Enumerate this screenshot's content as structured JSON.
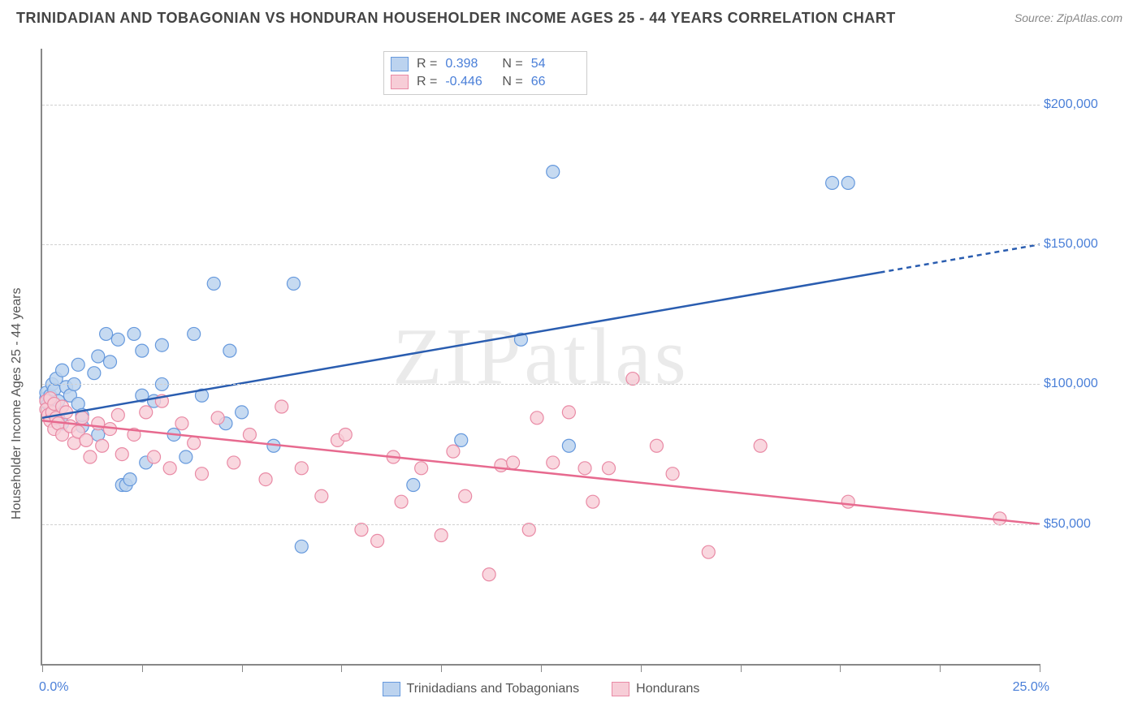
{
  "title": "TRINIDADIAN AND TOBAGONIAN VS HONDURAN HOUSEHOLDER INCOME AGES 25 - 44 YEARS CORRELATION CHART",
  "source": "Source: ZipAtlas.com",
  "watermark": "ZIPatlas",
  "chart": {
    "type": "scatter",
    "y_axis_label": "Householder Income Ages 25 - 44 years",
    "xlim": [
      0,
      25
    ],
    "ylim": [
      0,
      220000
    ],
    "x_tick_min_label": "0.0%",
    "x_tick_max_label": "25.0%",
    "x_tick_positions": [
      0,
      2.5,
      5,
      7.5,
      10,
      12.5,
      15,
      17.5,
      20,
      22.5,
      25
    ],
    "y_ticks": [
      {
        "v": 50000,
        "label": "$50,000"
      },
      {
        "v": 100000,
        "label": "$100,000"
      },
      {
        "v": 150000,
        "label": "$150,000"
      },
      {
        "v": 200000,
        "label": "$200,000"
      }
    ],
    "background_color": "#ffffff",
    "grid_color": "#d0d0d0",
    "axis_color": "#888888",
    "tick_label_color": "#4a7fd8",
    "title_color": "#444444",
    "title_fontsize": 18,
    "label_fontsize": 16,
    "marker_radius": 8
  },
  "stats_legend": {
    "rows": [
      {
        "swatch_fill": "#bcd3ef",
        "swatch_border": "#6699dd",
        "r_label": "R =",
        "r_value": "0.398",
        "n_label": "N =",
        "n_value": "54"
      },
      {
        "swatch_fill": "#f7cdd7",
        "swatch_border": "#e98aa5",
        "r_label": "R =",
        "r_value": "-0.446",
        "n_label": "N =",
        "n_value": "66"
      }
    ]
  },
  "bottom_legend": {
    "items": [
      {
        "swatch_fill": "#bcd3ef",
        "swatch_border": "#6699dd",
        "label": "Trinidadians and Tobagonians"
      },
      {
        "swatch_fill": "#f7cdd7",
        "swatch_border": "#e98aa5",
        "label": "Hondurans"
      }
    ]
  },
  "series": [
    {
      "name": "Trinidadians and Tobagonians",
      "marker_fill": "#bcd3ef",
      "marker_stroke": "#6699dd",
      "marker_opacity": 0.85,
      "trend": {
        "color": "#2a5db0",
        "width": 2.5,
        "x1": 0,
        "y1": 88000,
        "x2": 21,
        "y2": 140000,
        "dash_x2": 25,
        "dash_y2": 150000
      },
      "points": [
        [
          0.1,
          95000
        ],
        [
          0.1,
          97000
        ],
        [
          0.15,
          93000
        ],
        [
          0.2,
          96000
        ],
        [
          0.2,
          92000
        ],
        [
          0.25,
          100000
        ],
        [
          0.3,
          98000
        ],
        [
          0.3,
          90000
        ],
        [
          0.35,
          102000
        ],
        [
          0.4,
          94000
        ],
        [
          0.4,
          88000
        ],
        [
          0.5,
          105000
        ],
        [
          0.5,
          86000
        ],
        [
          0.6,
          99000
        ],
        [
          0.7,
          96000
        ],
        [
          0.8,
          100000
        ],
        [
          0.9,
          93000
        ],
        [
          0.9,
          107000
        ],
        [
          1.0,
          85000
        ],
        [
          1.0,
          89000
        ],
        [
          1.3,
          104000
        ],
        [
          1.4,
          110000
        ],
        [
          1.4,
          82000
        ],
        [
          1.6,
          118000
        ],
        [
          1.7,
          108000
        ],
        [
          1.9,
          116000
        ],
        [
          2.0,
          64000
        ],
        [
          2.1,
          64000
        ],
        [
          2.2,
          66000
        ],
        [
          2.3,
          118000
        ],
        [
          2.5,
          112000
        ],
        [
          2.5,
          96000
        ],
        [
          2.6,
          72000
        ],
        [
          2.8,
          94000
        ],
        [
          3.0,
          114000
        ],
        [
          3.0,
          100000
        ],
        [
          3.3,
          82000
        ],
        [
          3.6,
          74000
        ],
        [
          3.8,
          118000
        ],
        [
          4.0,
          96000
        ],
        [
          4.3,
          136000
        ],
        [
          4.6,
          86000
        ],
        [
          4.7,
          112000
        ],
        [
          5.0,
          90000
        ],
        [
          5.8,
          78000
        ],
        [
          6.3,
          136000
        ],
        [
          6.5,
          42000
        ],
        [
          9.3,
          64000
        ],
        [
          10.5,
          80000
        ],
        [
          12.0,
          116000
        ],
        [
          12.8,
          176000
        ],
        [
          13.2,
          78000
        ],
        [
          19.8,
          172000
        ],
        [
          20.2,
          172000
        ]
      ]
    },
    {
      "name": "Hondurans",
      "marker_fill": "#f7cdd7",
      "marker_stroke": "#e98aa5",
      "marker_opacity": 0.8,
      "trend": {
        "color": "#e76a8f",
        "width": 2.5,
        "x1": 0,
        "y1": 87000,
        "x2": 25,
        "y2": 50000,
        "dash_x2": 25,
        "dash_y2": 50000
      },
      "points": [
        [
          0.1,
          94000
        ],
        [
          0.1,
          91000
        ],
        [
          0.15,
          89000
        ],
        [
          0.2,
          95000
        ],
        [
          0.2,
          87000
        ],
        [
          0.25,
          90000
        ],
        [
          0.3,
          93000
        ],
        [
          0.3,
          84000
        ],
        [
          0.35,
          88000
        ],
        [
          0.4,
          86000
        ],
        [
          0.5,
          92000
        ],
        [
          0.5,
          82000
        ],
        [
          0.6,
          90000
        ],
        [
          0.7,
          85000
        ],
        [
          0.8,
          79000
        ],
        [
          0.9,
          83000
        ],
        [
          1.0,
          88000
        ],
        [
          1.1,
          80000
        ],
        [
          1.2,
          74000
        ],
        [
          1.4,
          86000
        ],
        [
          1.5,
          78000
        ],
        [
          1.7,
          84000
        ],
        [
          1.9,
          89000
        ],
        [
          2.0,
          75000
        ],
        [
          2.3,
          82000
        ],
        [
          2.6,
          90000
        ],
        [
          2.8,
          74000
        ],
        [
          3.0,
          94000
        ],
        [
          3.2,
          70000
        ],
        [
          3.5,
          86000
        ],
        [
          3.8,
          79000
        ],
        [
          4.0,
          68000
        ],
        [
          4.4,
          88000
        ],
        [
          4.8,
          72000
        ],
        [
          5.2,
          82000
        ],
        [
          5.6,
          66000
        ],
        [
          6.0,
          92000
        ],
        [
          6.5,
          70000
        ],
        [
          7.0,
          60000
        ],
        [
          7.4,
          80000
        ],
        [
          7.6,
          82000
        ],
        [
          8.0,
          48000
        ],
        [
          8.4,
          44000
        ],
        [
          8.8,
          74000
        ],
        [
          9.0,
          58000
        ],
        [
          9.5,
          70000
        ],
        [
          10.0,
          46000
        ],
        [
          10.3,
          76000
        ],
        [
          10.6,
          60000
        ],
        [
          11.2,
          32000
        ],
        [
          11.5,
          71000
        ],
        [
          11.8,
          72000
        ],
        [
          12.2,
          48000
        ],
        [
          12.4,
          88000
        ],
        [
          12.8,
          72000
        ],
        [
          13.2,
          90000
        ],
        [
          13.6,
          70000
        ],
        [
          13.8,
          58000
        ],
        [
          14.2,
          70000
        ],
        [
          14.8,
          102000
        ],
        [
          15.4,
          78000
        ],
        [
          15.8,
          68000
        ],
        [
          16.7,
          40000
        ],
        [
          18.0,
          78000
        ],
        [
          20.2,
          58000
        ],
        [
          24.0,
          52000
        ]
      ]
    }
  ]
}
